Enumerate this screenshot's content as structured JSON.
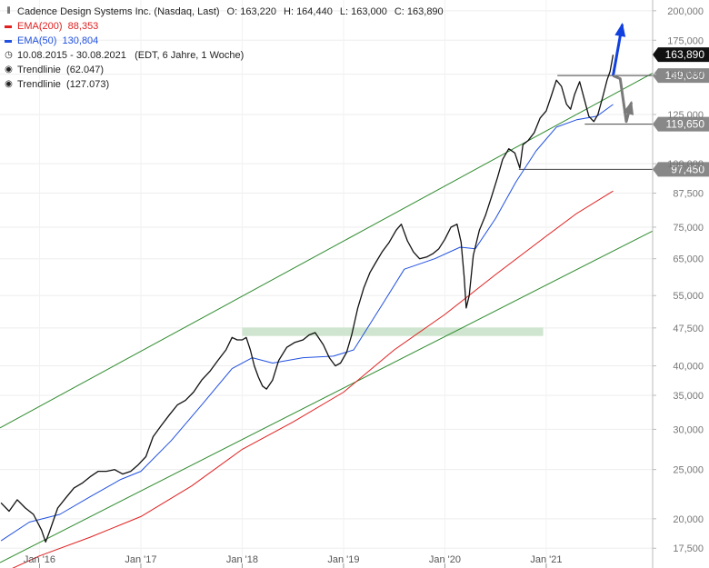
{
  "chart_data": {
    "type": "line",
    "title": "Cadence Design Systems Inc. (Nasdaq, Last)",
    "ohlc": {
      "O_label": "O:",
      "O": "163,220",
      "H_label": "H:",
      "H": "164,440",
      "L_label": "L:",
      "L": "163,000",
      "C_label": "C:",
      "C": "163,890"
    },
    "period": "10.08.2015 - 30.08.2021",
    "period_note": "(EDT, 6 Jahre, 1 Woche)",
    "y_scale": "log",
    "ylim": [
      16000,
      210000
    ],
    "y_ticks": [
      {
        "v": 200000,
        "label": "200,000"
      },
      {
        "v": 175000,
        "label": "175,000"
      },
      {
        "v": 150000,
        "label": "150,000"
      },
      {
        "v": 125000,
        "label": "125,000"
      },
      {
        "v": 100000,
        "label": "100,000"
      },
      {
        "v": 87500,
        "label": "87,500"
      },
      {
        "v": 75000,
        "label": "75,000"
      },
      {
        "v": 65000,
        "label": "65,000"
      },
      {
        "v": 55000,
        "label": "55,000"
      },
      {
        "v": 47500,
        "label": "47,500"
      },
      {
        "v": 40000,
        "label": "40,000"
      },
      {
        "v": 35000,
        "label": "35,000"
      },
      {
        "v": 30000,
        "label": "30,000"
      },
      {
        "v": 25000,
        "label": "25,000"
      },
      {
        "v": 20000,
        "label": "20,000"
      },
      {
        "v": 17500,
        "label": "17,500"
      }
    ],
    "x_ticks": [
      {
        "x": 2016.0,
        "label": "Jan '16"
      },
      {
        "x": 2017.0,
        "label": "Jan '17"
      },
      {
        "x": 2018.0,
        "label": "Jan '18"
      },
      {
        "x": 2019.0,
        "label": "Jan '19"
      },
      {
        "x": 2020.0,
        "label": "Jan '20"
      },
      {
        "x": 2021.0,
        "label": "Jan '21"
      }
    ],
    "xlim": [
      2015.61,
      2022.05
    ],
    "series": [
      {
        "name": "Cadence Design Systems Inc.",
        "kind": "price",
        "color": "#111111",
        "points": [
          [
            2015.62,
            21500
          ],
          [
            2015.7,
            20700
          ],
          [
            2015.78,
            21800
          ],
          [
            2015.86,
            21000
          ],
          [
            2015.94,
            20400
          ],
          [
            2016.02,
            19000
          ],
          [
            2016.06,
            18000
          ],
          [
            2016.1,
            18900
          ],
          [
            2016.18,
            21000
          ],
          [
            2016.26,
            22000
          ],
          [
            2016.34,
            23000
          ],
          [
            2016.42,
            23500
          ],
          [
            2016.5,
            24200
          ],
          [
            2016.58,
            24800
          ],
          [
            2016.66,
            24800
          ],
          [
            2016.74,
            25000
          ],
          [
            2016.82,
            24500
          ],
          [
            2016.9,
            24800
          ],
          [
            2016.97,
            25500
          ],
          [
            2017.05,
            26500
          ],
          [
            2017.12,
            29000
          ],
          [
            2017.2,
            30500
          ],
          [
            2017.28,
            32000
          ],
          [
            2017.36,
            33500
          ],
          [
            2017.44,
            34200
          ],
          [
            2017.52,
            35500
          ],
          [
            2017.6,
            37500
          ],
          [
            2017.68,
            39000
          ],
          [
            2017.76,
            41000
          ],
          [
            2017.84,
            43000
          ],
          [
            2017.9,
            45500
          ],
          [
            2017.95,
            45000
          ],
          [
            2018.0,
            45000
          ],
          [
            2018.04,
            45500
          ],
          [
            2018.08,
            43000
          ],
          [
            2018.12,
            40000
          ],
          [
            2018.16,
            38000
          ],
          [
            2018.2,
            36500
          ],
          [
            2018.24,
            36000
          ],
          [
            2018.3,
            37500
          ],
          [
            2018.36,
            41000
          ],
          [
            2018.44,
            43500
          ],
          [
            2018.52,
            44500
          ],
          [
            2018.6,
            45000
          ],
          [
            2018.66,
            46000
          ],
          [
            2018.72,
            46500
          ],
          [
            2018.8,
            44000
          ],
          [
            2018.86,
            41500
          ],
          [
            2018.92,
            40000
          ],
          [
            2018.97,
            40500
          ],
          [
            2019.03,
            42500
          ],
          [
            2019.08,
            46000
          ],
          [
            2019.14,
            52000
          ],
          [
            2019.2,
            57000
          ],
          [
            2019.26,
            61000
          ],
          [
            2019.32,
            64000
          ],
          [
            2019.38,
            67000
          ],
          [
            2019.45,
            70000
          ],
          [
            2019.52,
            74000
          ],
          [
            2019.57,
            76000
          ],
          [
            2019.63,
            70500
          ],
          [
            2019.69,
            67000
          ],
          [
            2019.75,
            65000
          ],
          [
            2019.82,
            65500
          ],
          [
            2019.88,
            66500
          ],
          [
            2019.94,
            68000
          ],
          [
            2020.0,
            71000
          ],
          [
            2020.06,
            75000
          ],
          [
            2020.12,
            76000
          ],
          [
            2020.16,
            70000
          ],
          [
            2020.19,
            60000
          ],
          [
            2020.21,
            52000
          ],
          [
            2020.24,
            55000
          ],
          [
            2020.28,
            66000
          ],
          [
            2020.34,
            74000
          ],
          [
            2020.4,
            79000
          ],
          [
            2020.46,
            86000
          ],
          [
            2020.52,
            94000
          ],
          [
            2020.57,
            102000
          ],
          [
            2020.63,
            107000
          ],
          [
            2020.69,
            105000
          ],
          [
            2020.74,
            98000
          ],
          [
            2020.77,
            109000
          ],
          [
            2020.82,
            111000
          ],
          [
            2020.88,
            115000
          ],
          [
            2020.94,
            123000
          ],
          [
            2021.0,
            127000
          ],
          [
            2021.05,
            136000
          ],
          [
            2021.1,
            146000
          ],
          [
            2021.15,
            142000
          ],
          [
            2021.2,
            131000
          ],
          [
            2021.24,
            128000
          ],
          [
            2021.28,
            137000
          ],
          [
            2021.33,
            145000
          ],
          [
            2021.38,
            133000
          ],
          [
            2021.42,
            124000
          ],
          [
            2021.47,
            121000
          ],
          [
            2021.51,
            125000
          ],
          [
            2021.56,
            136000
          ],
          [
            2021.6,
            146000
          ],
          [
            2021.63,
            152000
          ],
          [
            2021.66,
            163890
          ]
        ]
      },
      {
        "name": "EMA(200)",
        "value": "88,353",
        "color": "#e02020",
        "points": [
          [
            2015.62,
            15600
          ],
          [
            2016.0,
            16900
          ],
          [
            2016.5,
            18400
          ],
          [
            2017.0,
            20200
          ],
          [
            2017.5,
            23200
          ],
          [
            2018.0,
            27400
          ],
          [
            2018.5,
            31000
          ],
          [
            2019.0,
            35500
          ],
          [
            2019.5,
            43000
          ],
          [
            2020.0,
            50500
          ],
          [
            2020.5,
            60500
          ],
          [
            2021.0,
            72000
          ],
          [
            2021.3,
            79800
          ],
          [
            2021.66,
            88353
          ]
        ]
      },
      {
        "name": "EMA(50)",
        "value": "130,804",
        "color": "#2050e0",
        "points": [
          [
            2015.62,
            18100
          ],
          [
            2015.9,
            19700
          ],
          [
            2016.2,
            20400
          ],
          [
            2016.5,
            22100
          ],
          [
            2016.8,
            23900
          ],
          [
            2017.0,
            24800
          ],
          [
            2017.3,
            28500
          ],
          [
            2017.6,
            33500
          ],
          [
            2017.9,
            39500
          ],
          [
            2018.1,
            41500
          ],
          [
            2018.3,
            40500
          ],
          [
            2018.6,
            41500
          ],
          [
            2018.9,
            41800
          ],
          [
            2019.1,
            43000
          ],
          [
            2019.4,
            53500
          ],
          [
            2019.6,
            62000
          ],
          [
            2019.9,
            65000
          ],
          [
            2020.15,
            68500
          ],
          [
            2020.3,
            68000
          ],
          [
            2020.5,
            78000
          ],
          [
            2020.7,
            92000
          ],
          [
            2020.9,
            106000
          ],
          [
            2021.1,
            118000
          ],
          [
            2021.3,
            122000
          ],
          [
            2021.5,
            124000
          ],
          [
            2021.66,
            130804
          ]
        ]
      }
    ],
    "trendlines": [
      {
        "name": "Trendlinie",
        "value": "(62.047)",
        "color": "#2e8b2e",
        "from": [
          2015.61,
          16400
        ],
        "to": [
          2022.05,
          73700
        ]
      },
      {
        "name": "Trendlinie",
        "value": "(127.073)",
        "color": "#2e8b2e",
        "from": [
          2015.61,
          30200
        ],
        "to": [
          2022.05,
          150800
        ]
      }
    ],
    "support_zone": {
      "color": "#cfe5cf",
      "from_x": 2018.0,
      "to_x": 2020.97,
      "y_low": 45800,
      "y_high": 47600
    },
    "horizontal_levels": [
      {
        "value": 149080,
        "label": "149,080",
        "from_x": 2021.11,
        "style": "level"
      },
      {
        "value": 119650,
        "label": "119,650",
        "from_x": 2021.38,
        "style": "level"
      },
      {
        "value": 97450,
        "label": "97,450",
        "from_x": 2020.73,
        "style": "level"
      },
      {
        "value": 163890,
        "label": "163,890",
        "style": "last"
      }
    ],
    "scenario_arrows": [
      {
        "color": "#1040e0",
        "points": [
          [
            2021.66,
            149080
          ],
          [
            2021.75,
            188000
          ]
        ]
      },
      {
        "color": "#7a7a7a",
        "points": [
          [
            2021.66,
            149080
          ],
          [
            2021.73,
            147000
          ],
          [
            2021.79,
            121000
          ],
          [
            2021.84,
            132000
          ]
        ]
      }
    ]
  }
}
